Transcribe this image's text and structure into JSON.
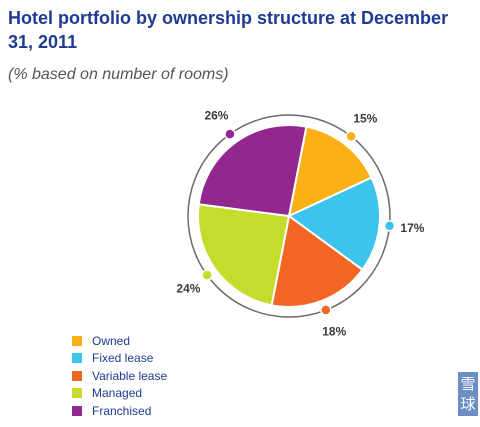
{
  "chart_data": {
    "type": "pie",
    "title": "Hotel portfolio by ownership structure at December 31, 2011",
    "subtitle": "(% based on number of rooms)",
    "legend_position": "bottom-left",
    "categories": [
      "Owned",
      "Fixed lease",
      "Variable lease",
      "Managed",
      "Franchised"
    ],
    "values": [
      15,
      17,
      18,
      24,
      26
    ],
    "data_labels": [
      "15%",
      "17%",
      "18%",
      "24%",
      "26%"
    ],
    "colors": [
      "#FBB017",
      "#3CC4EC",
      "#F26522",
      "#C6DC2C",
      "#93268F"
    ]
  },
  "watermark": "雪球"
}
